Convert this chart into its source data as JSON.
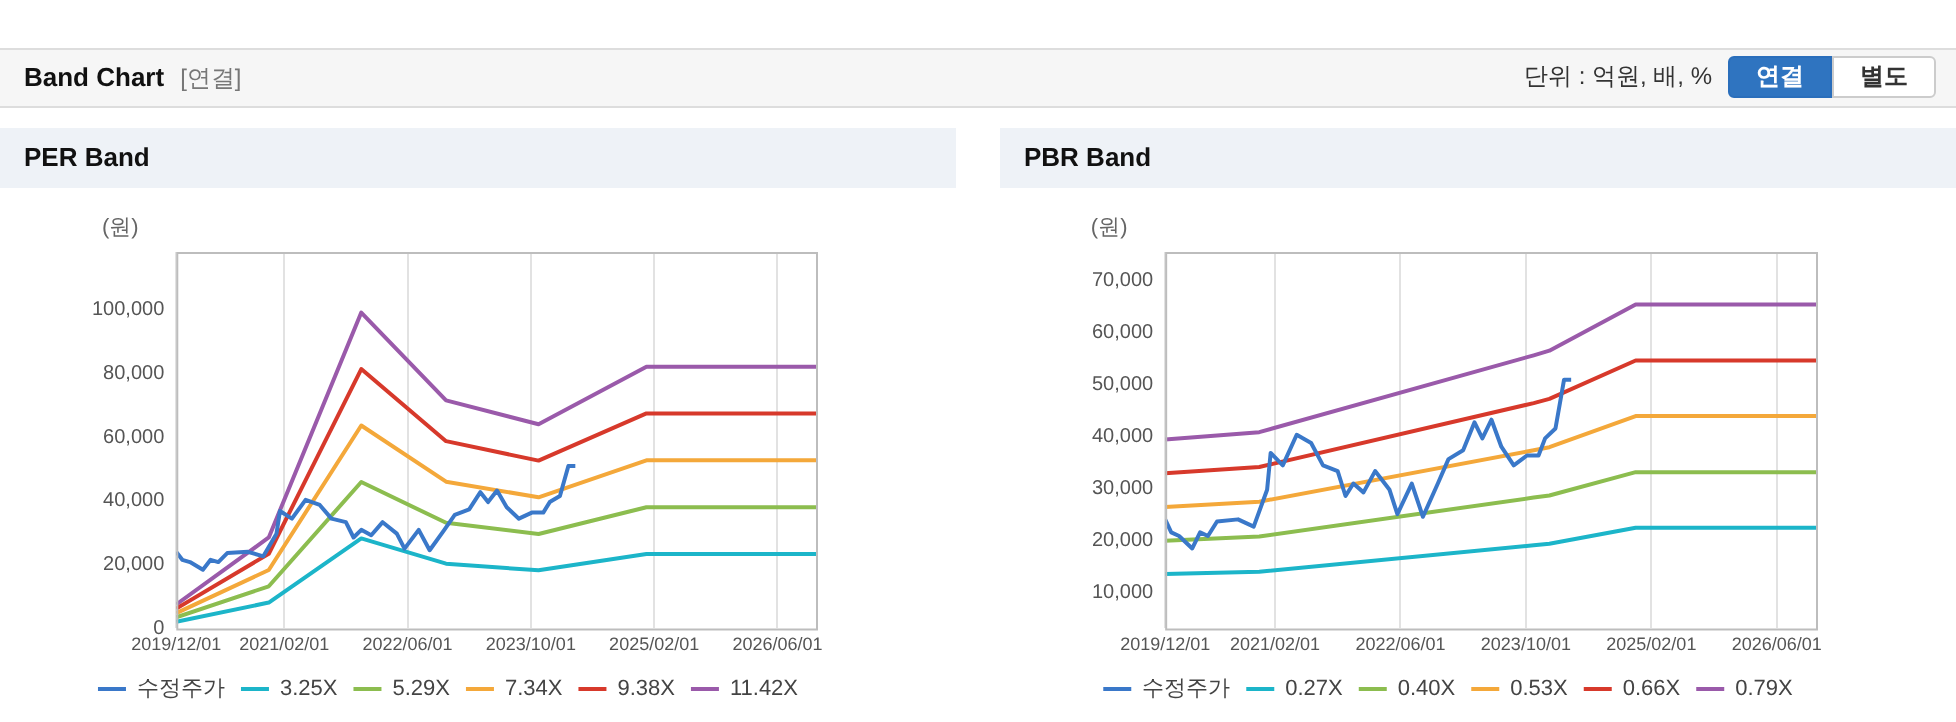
{
  "chart_data": [
    {
      "type": "other",
      "title": "Band Chart",
      "subtitle": "[연결]",
      "annotations": [
        "단위 : 억원, 배, %",
        "연결",
        "별도"
      ]
    },
    {
      "type": "line",
      "title": "PER Band",
      "ylabel": "(원)",
      "legend": "bottom",
      "grid": "x",
      "marker": "none",
      "xlim": [
        "2019-12-01",
        "2026-11-01"
      ],
      "xticks": [
        {
          "value": "2019-12-01",
          "label": "2019/12/01"
        },
        {
          "value": "2021-02-01",
          "label": "2021/02/01"
        },
        {
          "value": "2022-06-01",
          "label": "2022/06/01"
        },
        {
          "value": "2023-10-01",
          "label": "2023/10/01"
        },
        {
          "value": "2025-02-01",
          "label": "2025/02/01"
        },
        {
          "value": "2026-06-01",
          "label": "2026/06/01"
        }
      ],
      "ylim": [
        0,
        118000
      ],
      "yticks": [
        0,
        {
          "value": 20000,
          "label": "20,000"
        },
        {
          "value": 40000,
          "label": "40,000"
        },
        {
          "value": 60000,
          "label": "60,000"
        },
        {
          "value": 80000,
          "label": "80,000"
        },
        {
          "value": 100000,
          "label": "100,000"
        }
      ],
      "series": [
        {
          "name": "수정주가",
          "color": "#3a78c9",
          "x": [
            "2019-12-01",
            "2019-12-25",
            "2020-01-25",
            "2020-03-15",
            "2020-04-15",
            "2020-05-15",
            "2020-06-20",
            "2020-09-10",
            "2020-11-10",
            "2021-01-01",
            "2021-01-15",
            "2021-03-01",
            "2021-04-25",
            "2021-06-20",
            "2021-08-05",
            "2021-10-01",
            "2021-11-01",
            "2021-12-01",
            "2022-01-10",
            "2022-02-25",
            "2022-04-20",
            "2022-05-20",
            "2022-07-15",
            "2022-08-28",
            "2022-10-25",
            "2022-12-05",
            "2023-02-01",
            "2023-03-15",
            "2023-04-15",
            "2023-05-20",
            "2023-06-28",
            "2023-08-15",
            "2023-10-05",
            "2023-11-20",
            "2023-12-15",
            "2024-01-25",
            "2024-02-28",
            "2024-03-25"
          ],
          "values": [
            24000,
            21500,
            20800,
            18400,
            21500,
            20800,
            23600,
            24000,
            22600,
            29700,
            36800,
            34400,
            40300,
            38700,
            34400,
            33300,
            28500,
            30900,
            29200,
            33300,
            29700,
            25000,
            30900,
            24500,
            30900,
            35600,
            37300,
            42700,
            39600,
            43200,
            38000,
            34400,
            36300,
            36300,
            39600,
            41500,
            50900,
            50900
          ]
        },
        {
          "name": "3.25X",
          "color": "#1cb5c9",
          "x": [
            "2019-12-01",
            "2020-12-01",
            "2021-12-01",
            "2022-11-01",
            "2023-11-01",
            "2025-01-01",
            "2026-11-01"
          ],
          "values": [
            2100,
            8100,
            28200,
            20300,
            18200,
            23300,
            23300
          ]
        },
        {
          "name": "5.29X",
          "color": "#8cbd4f",
          "x": [
            "2019-12-01",
            "2020-12-01",
            "2021-12-01",
            "2022-11-01",
            "2023-11-01",
            "2025-01-01",
            "2026-11-01"
          ],
          "values": [
            3500,
            13200,
            45900,
            33100,
            29600,
            38000,
            38000
          ]
        },
        {
          "name": "7.34X",
          "color": "#f4a83a",
          "x": [
            "2019-12-01",
            "2020-12-01",
            "2021-12-01",
            "2022-11-01",
            "2023-11-01",
            "2025-01-01",
            "2026-11-01"
          ],
          "values": [
            4800,
            18300,
            63600,
            46000,
            41100,
            52700,
            52700
          ]
        },
        {
          "name": "9.38X",
          "color": "#d7392b",
          "x": [
            "2019-12-01",
            "2020-12-01",
            "2021-12-01",
            "2022-11-01",
            "2023-11-01",
            "2025-01-01",
            "2026-11-01"
          ],
          "values": [
            6200,
            23400,
            81300,
            58700,
            52600,
            67400,
            67400
          ]
        },
        {
          "name": "11.42X",
          "color": "#9a5aaa",
          "x": [
            "2019-12-01",
            "2020-12-01",
            "2021-12-01",
            "2022-11-01",
            "2023-11-01",
            "2025-01-01",
            "2026-11-01"
          ],
          "values": [
            7500,
            28500,
            99000,
            71500,
            64000,
            82000,
            82000
          ]
        }
      ]
    },
    {
      "type": "line",
      "title": "PBR Band",
      "ylabel": "(원)",
      "legend": "bottom",
      "grid": "x",
      "marker": "none",
      "xlim": [
        "2019-12-01",
        "2026-11-01"
      ],
      "xticks": [
        {
          "value": "2019-12-01",
          "label": "2019/12/01"
        },
        {
          "value": "2021-02-01",
          "label": "2021/02/01"
        },
        {
          "value": "2022-06-01",
          "label": "2022/06/01"
        },
        {
          "value": "2023-10-01",
          "label": "2023/10/01"
        },
        {
          "value": "2025-02-01",
          "label": "2025/02/01"
        },
        {
          "value": "2026-06-01",
          "label": "2026/06/01"
        }
      ],
      "ylim": [
        3000,
        75500
      ],
      "yticks": [
        {
          "value": 10000,
          "label": "10,000"
        },
        {
          "value": 20000,
          "label": "20,000"
        },
        {
          "value": 30000,
          "label": "30,000"
        },
        {
          "value": 40000,
          "label": "40,000"
        },
        {
          "value": 50000,
          "label": "50,000"
        },
        {
          "value": 60000,
          "label": "60,000"
        },
        {
          "value": 70000,
          "label": "70,000"
        }
      ],
      "series": [
        {
          "name": "수정주가",
          "color": "#3a78c9",
          "x": [
            "2019-12-01",
            "2019-12-25",
            "2020-01-25",
            "2020-03-15",
            "2020-04-15",
            "2020-05-15",
            "2020-06-20",
            "2020-09-10",
            "2020-11-10",
            "2021-01-01",
            "2021-01-15",
            "2021-03-01",
            "2021-04-25",
            "2021-06-20",
            "2021-08-05",
            "2021-10-01",
            "2021-11-01",
            "2021-12-01",
            "2022-01-10",
            "2022-02-25",
            "2022-04-20",
            "2022-05-20",
            "2022-07-15",
            "2022-08-28",
            "2022-10-25",
            "2022-12-05",
            "2023-02-01",
            "2023-03-15",
            "2023-04-15",
            "2023-05-20",
            "2023-06-28",
            "2023-08-15",
            "2023-10-05",
            "2023-11-20",
            "2023-12-15",
            "2024-01-25",
            "2024-02-28",
            "2024-03-25"
          ],
          "values": [
            24000,
            21500,
            20800,
            18400,
            21500,
            20800,
            23600,
            24000,
            22600,
            29700,
            36800,
            34400,
            40300,
            38700,
            34400,
            33300,
            28500,
            30900,
            29200,
            33300,
            29700,
            25000,
            30900,
            24500,
            30900,
            35600,
            37300,
            42700,
            39600,
            43200,
            38000,
            34400,
            36300,
            36300,
            39600,
            41500,
            50900,
            50900
          ]
        },
        {
          "name": "0.27X",
          "color": "#1cb5c9",
          "x": [
            "2019-12-01",
            "2020-12-01",
            "2023-11-01",
            "2024-01-01",
            "2024-12-01",
            "2026-11-01"
          ],
          "values": [
            13500,
            13900,
            19000,
            19300,
            22400,
            22400
          ]
        },
        {
          "name": "0.40X",
          "color": "#8cbd4f",
          "x": [
            "2019-12-01",
            "2020-12-01",
            "2023-11-01",
            "2024-01-01",
            "2024-12-01",
            "2026-11-01"
          ],
          "values": [
            19900,
            20700,
            28200,
            28600,
            33100,
            33100
          ]
        },
        {
          "name": "0.53X",
          "color": "#f4a83a",
          "x": [
            "2019-12-01",
            "2020-12-01",
            "2023-11-01",
            "2024-01-01",
            "2024-12-01",
            "2026-11-01"
          ],
          "values": [
            26400,
            27400,
            37300,
            37900,
            43900,
            43900
          ]
        },
        {
          "name": "0.66X",
          "color": "#d7392b",
          "x": [
            "2019-12-01",
            "2020-12-01",
            "2023-11-01",
            "2024-01-01",
            "2024-12-01",
            "2026-11-01"
          ],
          "values": [
            32900,
            34100,
            46400,
            47200,
            54600,
            54600
          ]
        },
        {
          "name": "0.79X",
          "color": "#9a5aaa",
          "x": [
            "2019-12-01",
            "2020-12-01",
            "2023-11-01",
            "2024-01-01",
            "2024-12-01",
            "2026-11-01"
          ],
          "values": [
            39400,
            40800,
            55600,
            56500,
            65400,
            65400
          ]
        }
      ]
    }
  ]
}
